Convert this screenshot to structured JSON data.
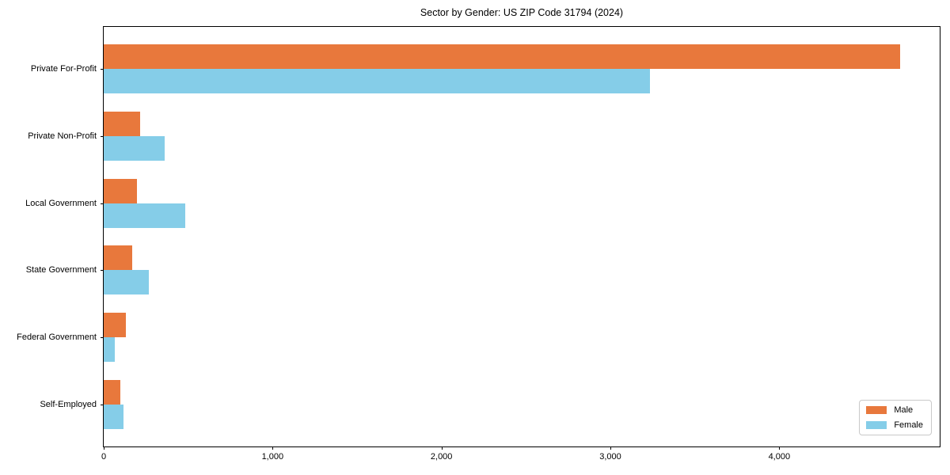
{
  "chart_data": {
    "type": "bar",
    "orientation": "horizontal",
    "title": "Sector by Gender: US ZIP Code 31794 (2024)",
    "categories": [
      "Private For-Profit",
      "Private Non-Profit",
      "Local Government",
      "State Government",
      "Federal Government",
      "Self-Employed"
    ],
    "series": [
      {
        "name": "Male",
        "color": "#E8783C",
        "values": [
          4716,
          217,
          199,
          170,
          131,
          100
        ]
      },
      {
        "name": "Female",
        "color": "#85CDE8",
        "values": [
          3234,
          362,
          483,
          269,
          66,
          116
        ]
      }
    ],
    "xlabel": "",
    "ylabel": "",
    "xlim": [
      0,
      4950
    ],
    "xticks": {
      "values": [
        0,
        1000,
        2000,
        3000,
        4000
      ],
      "labels": [
        "0",
        "1,000",
        "2,000",
        "3,000",
        "4,000"
      ]
    },
    "grid": false,
    "legend": {
      "position": "lower right"
    }
  },
  "colors": {
    "male": "#E8783C",
    "female": "#85CDE8",
    "axis": "#000000",
    "background": "#ffffff",
    "legend_border": "#c9c9c9"
  }
}
